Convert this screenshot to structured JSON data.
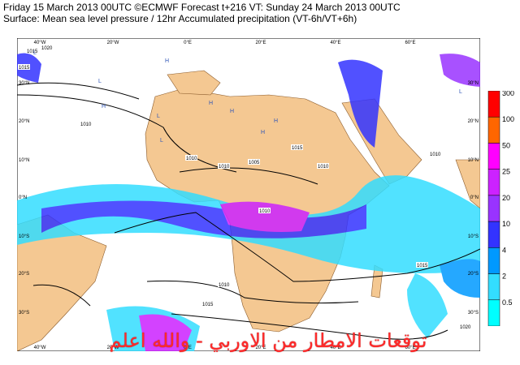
{
  "header": {
    "line1": "Friday 15 March 2013 00UTC ©ECMWF Forecast t+216 VT: Sunday 24 March 2013 00UTC",
    "line2": "Surface: Mean sea level pressure / 12hr Accumulated precipitation (VT-6h/VT+6h)"
  },
  "map": {
    "lon_labels": [
      "40°W",
      "20°W",
      "0°E",
      "20°E",
      "40°E",
      "60°E"
    ],
    "lat_labels_left": [
      "30°N",
      "20°N",
      "10°N",
      "0°N",
      "10°S",
      "20°S",
      "30°S"
    ],
    "lat_labels_right": [
      "30°N",
      "20°N",
      "10°N",
      "0°N",
      "10°S",
      "20°S",
      "30°S"
    ],
    "isobar_labels": [
      "1015",
      "1020",
      "1015",
      "1010",
      "1010",
      "1010",
      "1015",
      "1005",
      "1010",
      "1010",
      "1010",
      "1015",
      "1010",
      "1015",
      "1020"
    ],
    "pressure_centres": [
      "H",
      "H",
      "H",
      "L",
      "L",
      "L",
      "H",
      "H",
      "H",
      "L",
      "L"
    ]
  },
  "legend": {
    "levels": [
      "300",
      "100",
      "50",
      "25",
      "20",
      "10",
      "4",
      "2",
      "0.5"
    ],
    "colors": [
      "#ff0000",
      "#ff6600",
      "#ff00ff",
      "#cc22ff",
      "#9933ff",
      "#3333ff",
      "#0099ff",
      "#33ddff",
      "#00ffff"
    ]
  },
  "overlay_text": "توقعات الامطار من الاوربي - والله اعلم",
  "colors": {
    "ocean": "#ffffff",
    "land": "#f4c892",
    "isobar": "#000000",
    "overlay": "#ff2a2a"
  }
}
